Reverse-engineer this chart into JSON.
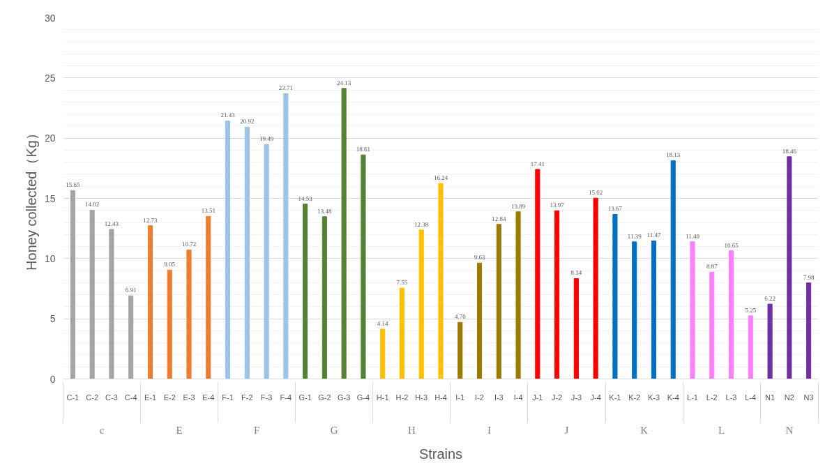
{
  "chart_data": {
    "type": "bar",
    "xlabel": "Strains",
    "ylabel": "Honey collected（Kg）",
    "annotations": [
      "c",
      "E",
      "F",
      "G",
      "H",
      "I",
      "J",
      "K",
      "L",
      "N"
    ],
    "categories": [
      "C-1",
      "C-2",
      "C-3",
      "C-4",
      "E-1",
      "E-2",
      "E-3",
      "E-4",
      "F-1",
      "F-2",
      "F-3",
      "F-4",
      "G-1",
      "G-2",
      "G-3",
      "G-4",
      "H-1",
      "H-2",
      "H-3",
      "H-4",
      "I-1",
      "I-2",
      "I-3",
      "I-4",
      "J-1",
      "J-2",
      "J-3",
      "J-4",
      "K-1",
      "K-2",
      "K-3",
      "K-4",
      "L-1",
      "L-2",
      "L-3",
      "L-4",
      "N1",
      "N2",
      "N3"
    ],
    "series": [
      {
        "color": "#a5a5a5",
        "values": [
          15.65,
          14.02,
          12.43,
          6.91,
          null,
          null,
          null,
          null,
          null,
          null,
          null,
          null,
          null,
          null,
          null,
          null,
          null,
          null,
          null,
          null,
          null,
          null,
          null,
          null,
          null,
          null,
          null,
          null,
          null,
          null,
          null,
          null,
          null,
          null,
          null,
          null,
          null,
          null,
          null
        ],
        "value_labels": [
          "15.65",
          "14.02",
          "12.43",
          "6.91",
          null,
          null,
          null,
          null,
          null,
          null,
          null,
          null,
          null,
          null,
          null,
          null,
          null,
          null,
          null,
          null,
          null,
          null,
          null,
          null,
          null,
          null,
          null,
          null,
          null,
          null,
          null,
          null,
          null,
          null,
          null,
          null,
          null,
          null,
          null
        ]
      },
      {
        "color": "#ed7d31",
        "values": [
          null,
          null,
          null,
          null,
          12.73,
          9.05,
          10.72,
          13.51,
          null,
          null,
          null,
          null,
          null,
          null,
          null,
          null,
          null,
          null,
          null,
          null,
          null,
          null,
          null,
          null,
          null,
          null,
          null,
          null,
          null,
          null,
          null,
          null,
          null,
          null,
          null,
          null,
          null,
          null,
          null
        ],
        "value_labels": [
          null,
          null,
          null,
          null,
          "12.73",
          "9.05",
          "10.72",
          "13.51",
          null,
          null,
          null,
          null,
          null,
          null,
          null,
          null,
          null,
          null,
          null,
          null,
          null,
          null,
          null,
          null,
          null,
          null,
          null,
          null,
          null,
          null,
          null,
          null,
          null,
          null,
          null,
          null,
          null,
          null,
          null
        ]
      },
      {
        "color": "#9dc3e6",
        "values": [
          null,
          null,
          null,
          null,
          null,
          null,
          null,
          null,
          21.43,
          20.92,
          19.49,
          23.71,
          null,
          null,
          null,
          null,
          null,
          null,
          null,
          null,
          null,
          null,
          null,
          null,
          null,
          null,
          null,
          null,
          null,
          null,
          null,
          null,
          null,
          null,
          null,
          null,
          null,
          null,
          null
        ],
        "value_labels": [
          null,
          null,
          null,
          null,
          null,
          null,
          null,
          null,
          "21.43",
          "20.92",
          "19.49",
          "23.71",
          null,
          null,
          null,
          null,
          null,
          null,
          null,
          null,
          null,
          null,
          null,
          null,
          null,
          null,
          null,
          null,
          null,
          null,
          null,
          null,
          null,
          null,
          null,
          null,
          null,
          null,
          null
        ]
      },
      {
        "color": "#548235",
        "values": [
          null,
          null,
          null,
          null,
          null,
          null,
          null,
          null,
          null,
          null,
          null,
          null,
          14.53,
          13.48,
          24.13,
          18.61,
          null,
          null,
          null,
          null,
          null,
          null,
          null,
          null,
          null,
          null,
          null,
          null,
          null,
          null,
          null,
          null,
          null,
          null,
          null,
          null,
          null,
          null,
          null
        ],
        "value_labels": [
          null,
          null,
          null,
          null,
          null,
          null,
          null,
          null,
          null,
          null,
          null,
          null,
          "14.53",
          "13.48",
          "24.13",
          "18.61",
          null,
          null,
          null,
          null,
          null,
          null,
          null,
          null,
          null,
          null,
          null,
          null,
          null,
          null,
          null,
          null,
          null,
          null,
          null,
          null,
          null,
          null,
          null
        ]
      },
      {
        "color": "#ffc000",
        "values": [
          null,
          null,
          null,
          null,
          null,
          null,
          null,
          null,
          null,
          null,
          null,
          null,
          null,
          null,
          null,
          null,
          4.14,
          7.55,
          12.38,
          16.24,
          null,
          null,
          null,
          null,
          null,
          null,
          null,
          null,
          null,
          null,
          null,
          null,
          null,
          null,
          null,
          null,
          null,
          null,
          null
        ],
        "value_labels": [
          null,
          null,
          null,
          null,
          null,
          null,
          null,
          null,
          null,
          null,
          null,
          null,
          null,
          null,
          null,
          null,
          "4.14",
          "7.55",
          "12.38",
          "16.24",
          null,
          null,
          null,
          null,
          null,
          null,
          null,
          null,
          null,
          null,
          null,
          null,
          null,
          null,
          null,
          null,
          null,
          null,
          null
        ]
      },
      {
        "color": "#9c7a00",
        "values": [
          null,
          null,
          null,
          null,
          null,
          null,
          null,
          null,
          null,
          null,
          null,
          null,
          null,
          null,
          null,
          null,
          null,
          null,
          null,
          null,
          4.7,
          9.63,
          12.84,
          13.89,
          null,
          null,
          null,
          null,
          null,
          null,
          null,
          null,
          null,
          null,
          null,
          null,
          null,
          null,
          null
        ],
        "value_labels": [
          null,
          null,
          null,
          null,
          null,
          null,
          null,
          null,
          null,
          null,
          null,
          null,
          null,
          null,
          null,
          null,
          null,
          null,
          null,
          null,
          "4.70",
          "9.63",
          "12.84",
          "13.89",
          null,
          null,
          null,
          null,
          null,
          null,
          null,
          null,
          null,
          null,
          null,
          null,
          null,
          null,
          null
        ]
      },
      {
        "color": "#ff0000",
        "values": [
          null,
          null,
          null,
          null,
          null,
          null,
          null,
          null,
          null,
          null,
          null,
          null,
          null,
          null,
          null,
          null,
          null,
          null,
          null,
          null,
          null,
          null,
          null,
          null,
          17.41,
          13.97,
          8.34,
          15.02,
          null,
          null,
          null,
          null,
          null,
          null,
          null,
          null,
          null,
          null,
          null
        ],
        "value_labels": [
          null,
          null,
          null,
          null,
          null,
          null,
          null,
          null,
          null,
          null,
          null,
          null,
          null,
          null,
          null,
          null,
          null,
          null,
          null,
          null,
          null,
          null,
          null,
          null,
          "17.41",
          "13.97",
          "8.34",
          "15.02",
          null,
          null,
          null,
          null,
          null,
          null,
          null,
          null,
          null,
          null,
          null
        ]
      },
      {
        "color": "#0070c0",
        "values": [
          null,
          null,
          null,
          null,
          null,
          null,
          null,
          null,
          null,
          null,
          null,
          null,
          null,
          null,
          null,
          null,
          null,
          null,
          null,
          null,
          null,
          null,
          null,
          null,
          null,
          null,
          null,
          null,
          13.67,
          11.39,
          11.47,
          18.13,
          null,
          null,
          null,
          null,
          null,
          null,
          null
        ],
        "value_labels": [
          null,
          null,
          null,
          null,
          null,
          null,
          null,
          null,
          null,
          null,
          null,
          null,
          null,
          null,
          null,
          null,
          null,
          null,
          null,
          null,
          null,
          null,
          null,
          null,
          null,
          null,
          null,
          null,
          "13.67",
          "11.39",
          "11.47",
          "18.13",
          null,
          null,
          null,
          null,
          null,
          null,
          null
        ]
      },
      {
        "color": "#ff80ff",
        "values": [
          null,
          null,
          null,
          null,
          null,
          null,
          null,
          null,
          null,
          null,
          null,
          null,
          null,
          null,
          null,
          null,
          null,
          null,
          null,
          null,
          null,
          null,
          null,
          null,
          null,
          null,
          null,
          null,
          null,
          null,
          null,
          null,
          11.4,
          8.87,
          10.65,
          5.25,
          null,
          null,
          null
        ],
        "value_labels": [
          null,
          null,
          null,
          null,
          null,
          null,
          null,
          null,
          null,
          null,
          null,
          null,
          null,
          null,
          null,
          null,
          null,
          null,
          null,
          null,
          null,
          null,
          null,
          null,
          null,
          null,
          null,
          null,
          null,
          null,
          null,
          null,
          "11.40",
          "8.87",
          "10.65",
          "5.25",
          null,
          null,
          null
        ]
      },
      {
        "color": "#7030a0",
        "values": [
          null,
          null,
          null,
          null,
          null,
          null,
          null,
          null,
          null,
          null,
          null,
          null,
          null,
          null,
          null,
          null,
          null,
          null,
          null,
          null,
          null,
          null,
          null,
          null,
          null,
          null,
          null,
          null,
          null,
          null,
          null,
          null,
          null,
          null,
          null,
          null,
          6.22,
          18.46,
          7.98
        ],
        "value_labels": [
          null,
          null,
          null,
          null,
          null,
          null,
          null,
          null,
          null,
          null,
          null,
          null,
          null,
          null,
          null,
          null,
          null,
          null,
          null,
          null,
          null,
          null,
          null,
          null,
          null,
          null,
          null,
          null,
          null,
          null,
          null,
          null,
          null,
          null,
          null,
          null,
          "6.22",
          "18.46",
          "7.98"
        ]
      }
    ],
    "ylim": [
      0,
      30
    ],
    "yticks": [
      0,
      5,
      10,
      15,
      20,
      25,
      30
    ],
    "grid": "y"
  }
}
